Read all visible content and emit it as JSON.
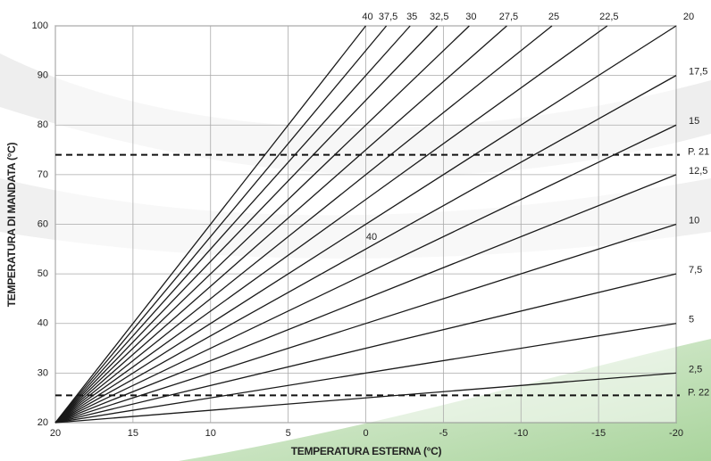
{
  "chart_data": {
    "type": "line",
    "x_label": "TEMPERATURA ESTERNA (°C)",
    "y_label": "TEMPERATURA DI MANDATA (°C)",
    "xlim": [
      20,
      -20
    ],
    "xticks": [
      20,
      15,
      10,
      5,
      0,
      -5,
      -10,
      -15,
      -20
    ],
    "ylim": [
      20,
      100
    ],
    "yticks": [
      20,
      30,
      40,
      50,
      60,
      70,
      80,
      90,
      100
    ],
    "grid": true,
    "color": "#1a1a1a",
    "series": [
      {
        "name": "40",
        "x": [
          20,
          0
        ],
        "values": [
          20,
          100
        ]
      },
      {
        "name": "37,5",
        "x": [
          20,
          -1.33
        ],
        "values": [
          20,
          100
        ]
      },
      {
        "name": "35",
        "x": [
          20,
          -2.86
        ],
        "values": [
          20,
          100
        ]
      },
      {
        "name": "32,5",
        "x": [
          20,
          -4.62
        ],
        "values": [
          20,
          100
        ]
      },
      {
        "name": "30",
        "x": [
          20,
          -6.67
        ],
        "values": [
          20,
          100
        ]
      },
      {
        "name": "27,5",
        "x": [
          20,
          -9.09
        ],
        "values": [
          20,
          100
        ]
      },
      {
        "name": "25",
        "x": [
          20,
          -12
        ],
        "values": [
          20,
          100
        ]
      },
      {
        "name": "22,5",
        "x": [
          20,
          -15.56
        ],
        "values": [
          20,
          100
        ]
      },
      {
        "name": "20",
        "x": [
          20,
          -20
        ],
        "values": [
          20,
          100
        ]
      },
      {
        "name": "17,5",
        "x": [
          20,
          -20
        ],
        "values": [
          20,
          90
        ]
      },
      {
        "name": "15",
        "x": [
          20,
          -20
        ],
        "values": [
          20,
          80
        ]
      },
      {
        "name": "12,5",
        "x": [
          20,
          -20
        ],
        "values": [
          20,
          70
        ]
      },
      {
        "name": "10",
        "x": [
          20,
          -20
        ],
        "values": [
          20,
          60
        ]
      },
      {
        "name": "7,5",
        "x": [
          20,
          -20
        ],
        "values": [
          20,
          50
        ]
      },
      {
        "name": "5",
        "x": [
          20,
          -20
        ],
        "values": [
          20,
          40
        ]
      },
      {
        "name": "2,5",
        "x": [
          20,
          -20
        ],
        "values": [
          20,
          30
        ]
      }
    ],
    "hlines": [
      {
        "label": "P. 21",
        "value": 74
      },
      {
        "label": "P. 22",
        "value": 25.5
      }
    ],
    "annotation": "40"
  }
}
